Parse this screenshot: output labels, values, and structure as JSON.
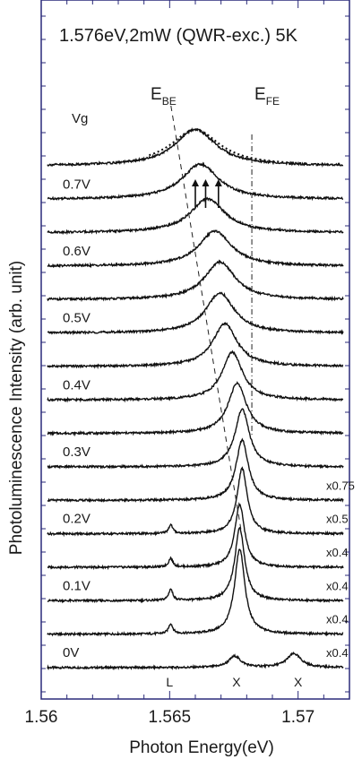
{
  "chart_data": {
    "type": "line",
    "title": "1.576eV,2mW (QWR-exc.) 5K",
    "xlabel": "Photon Energy(eV)",
    "ylabel": "Photoluminescence Intensity (arb. unit)",
    "xlim": [
      1.56,
      1.572
    ],
    "x_ticks": [
      "1.56",
      "1.565",
      "1.57"
    ],
    "legend_title": "Vg",
    "peak_labels": [
      "L",
      "X",
      "X"
    ],
    "peak_positions": [
      1.565,
      1.5676,
      1.57
    ],
    "marker_labels": {
      "be": "E",
      "be_sub": "BE",
      "fe": "E",
      "fe_sub": "FE"
    },
    "series": [
      {
        "name": "0V",
        "multiplier": "x0.4",
        "peaks": [
          {
            "x": 1.5676,
            "h": 0.45,
            "w": 0.0003
          },
          {
            "x": 1.57,
            "h": 0.55,
            "w": 0.00035
          }
        ]
      },
      {
        "name": "",
        "multiplier": "x0.4",
        "peaks": [
          {
            "x": 1.565,
            "h": 0.4,
            "w": 0.0001
          },
          {
            "x": 1.5678,
            "h": 3.4,
            "w": 0.00025
          }
        ]
      },
      {
        "name": "0.1V",
        "multiplier": "x0.4",
        "peaks": [
          {
            "x": 1.565,
            "h": 0.45,
            "w": 0.0001
          },
          {
            "x": 1.5678,
            "h": 2.9,
            "w": 0.00024
          }
        ]
      },
      {
        "name": "",
        "multiplier": "x0.4",
        "peaks": [
          {
            "x": 1.565,
            "h": 0.35,
            "w": 0.0001
          },
          {
            "x": 1.5678,
            "h": 2.5,
            "w": 0.00024
          }
        ]
      },
      {
        "name": "0.2V",
        "multiplier": "x0.5",
        "peaks": [
          {
            "x": 1.565,
            "h": 0.35,
            "w": 0.0001
          },
          {
            "x": 1.5679,
            "h": 2.6,
            "w": 0.00025
          }
        ]
      },
      {
        "name": "",
        "multiplier": "x0.75",
        "peaks": [
          {
            "x": 1.5679,
            "h": 2.4,
            "w": 0.0003
          }
        ]
      },
      {
        "name": "0.3V",
        "multiplier": "",
        "peaks": [
          {
            "x": 1.5679,
            "h": 2.3,
            "w": 0.00035
          }
        ]
      },
      {
        "name": "",
        "multiplier": "",
        "peaks": [
          {
            "x": 1.5677,
            "h": 2.0,
            "w": 0.00045
          }
        ]
      },
      {
        "name": "0.4V",
        "multiplier": "",
        "peaks": [
          {
            "x": 1.5675,
            "h": 1.9,
            "w": 0.0005
          }
        ]
      },
      {
        "name": "",
        "multiplier": "",
        "peaks": [
          {
            "x": 1.5672,
            "h": 1.7,
            "w": 0.0006
          }
        ]
      },
      {
        "name": "0.5V",
        "multiplier": "",
        "peaks": [
          {
            "x": 1.567,
            "h": 1.6,
            "w": 0.0007
          }
        ]
      },
      {
        "name": "",
        "multiplier": "",
        "peaks": [
          {
            "x": 1.567,
            "h": 1.5,
            "w": 0.00075
          }
        ]
      },
      {
        "name": "0.6V",
        "multiplier": "",
        "peaks": [
          {
            "x": 1.5668,
            "h": 1.4,
            "w": 0.0008
          }
        ]
      },
      {
        "name": "",
        "multiplier": "",
        "peaks": [
          {
            "x": 1.5665,
            "h": 1.35,
            "w": 0.00085
          }
        ]
      },
      {
        "name": "0.7V",
        "multiplier": "",
        "peaks": [
          {
            "x": 1.5662,
            "h": 1.4,
            "w": 0.0009
          }
        ]
      },
      {
        "name": "",
        "multiplier": "",
        "peaks": [
          {
            "x": 1.566,
            "h": 1.45,
            "w": 0.001
          }
        ]
      }
    ]
  }
}
